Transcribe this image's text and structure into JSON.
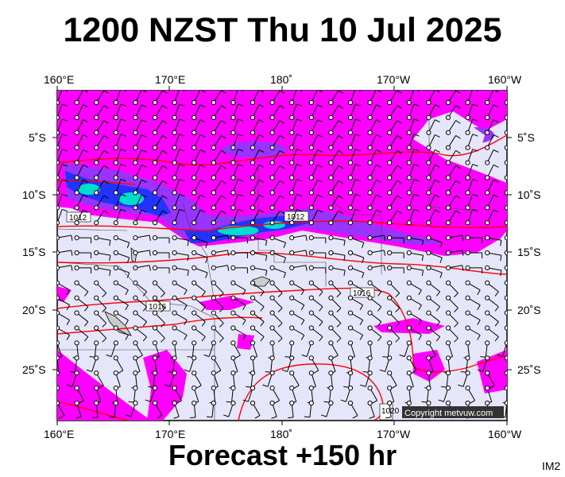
{
  "title": "1200 NZST Thu 10 Jul 2025",
  "footer": "Forecast +150 hr",
  "image_code": "IM2",
  "copyright": "Copyright metvuw.com",
  "lon_labels": [
    "160°E",
    "170°E",
    "180˚",
    "170°W",
    "160°W"
  ],
  "lat_labels": [
    "5˚S",
    "10˚S",
    "15˚S",
    "20˚S",
    "25˚S"
  ],
  "isobar_labels": [
    "1012",
    "1012",
    "1016",
    "1016",
    "1020"
  ],
  "colors": {
    "ocean": "#e6e6fa",
    "rain_light": "#ff00ff",
    "rain_mid": "#9933ff",
    "rain_heavy": "#2233ff",
    "rain_extreme": "#00ddcc",
    "isobar": "#ff0000",
    "land": "#cccccc",
    "barb": "#000000"
  }
}
